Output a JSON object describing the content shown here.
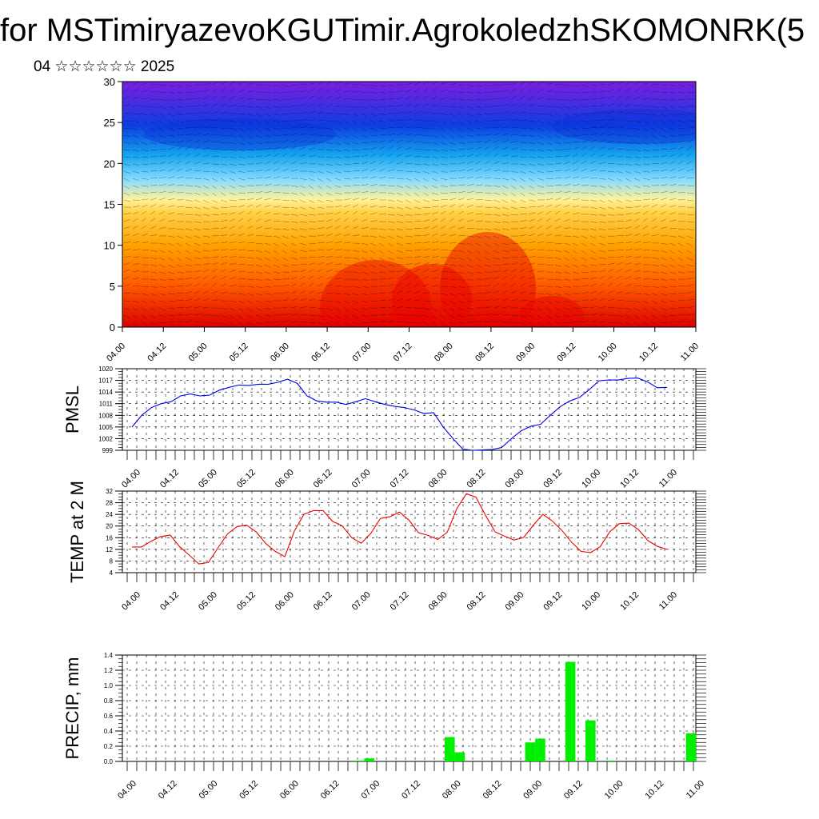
{
  "header": {
    "title": "for MSTimiryazevoKGUTimir.AgrokoledzhSKOMONRK(5",
    "subtitle": "04 ☆☆☆☆☆☆ 2025"
  },
  "time_ticks": [
    "04.00",
    "04.12",
    "05.00",
    "05.12",
    "06.00",
    "06.12",
    "07.00",
    "07.12",
    "08.00",
    "08.12",
    "09.00",
    "09.12",
    "10.00",
    "10.12",
    "11.00"
  ],
  "chart_data": [
    {
      "type": "heatmap",
      "title": "",
      "ylabel": "",
      "ylim": [
        0,
        30
      ],
      "yticks": [
        0,
        5,
        10,
        15,
        20,
        25,
        30
      ],
      "x_start": "04.00",
      "x_end": "11.00",
      "colors": [
        "#dd0000",
        "#ff5a00",
        "#ffa000",
        "#ffd34a",
        "#fff29a",
        "#87dcff",
        "#14a5ef",
        "#0d3ee2",
        "#7a1ee0"
      ],
      "overlay": "wind vectors",
      "grid": false
    },
    {
      "type": "line",
      "ylabel": "PMSL",
      "ylim": [
        999,
        1020
      ],
      "yticks": [
        999,
        1002,
        1005,
        1008,
        1011,
        1014,
        1017,
        1020
      ],
      "color": "#0000ee",
      "grid": true,
      "series": [
        {
          "values": [
            1005,
            1008,
            1010,
            1011,
            1011.5,
            1013,
            1013.5,
            1013,
            1013.2,
            1014.5,
            1015.2,
            1015.8,
            1015.7,
            1016,
            1016,
            1016.5,
            1017.3,
            1016.2,
            1013,
            1011.7,
            1011.4,
            1011.4,
            1010.8,
            1011.5,
            1012.3,
            1011.5,
            1010.8,
            1010.3,
            1010,
            1009.4,
            1008.5,
            1008.7,
            1005,
            1002,
            999.3,
            999,
            999.1,
            999.2,
            999.7,
            1002,
            1004,
            1005.2,
            1005.7,
            1008,
            1010.2,
            1011.7,
            1012.6,
            1014.6,
            1016.9,
            1017.1,
            1017.1,
            1017.5,
            1017.6,
            1016.6,
            1015.1,
            1015.2
          ]
        }
      ]
    },
    {
      "type": "line",
      "ylabel": "TEMP at 2 M",
      "ylim": [
        4,
        32
      ],
      "yticks": [
        4,
        8,
        12,
        16,
        20,
        24,
        28,
        32
      ],
      "color": "#ee0000",
      "grid": true,
      "series": [
        {
          "values": [
            12.8,
            12.8,
            14.8,
            16.4,
            16.9,
            12.9,
            10,
            7,
            7.5,
            12.5,
            17.3,
            19.8,
            20.3,
            18,
            14,
            11.3,
            9.5,
            18.3,
            24,
            25.3,
            25.3,
            21.6,
            20.1,
            16,
            14.1,
            17.5,
            22.6,
            23.2,
            24.8,
            22,
            17.7,
            16.8,
            15.4,
            17.9,
            26,
            31.1,
            29.9,
            23.7,
            18,
            16.5,
            15.2,
            16.1,
            20.3,
            24,
            21.7,
            18.5,
            14.5,
            11.3,
            10.9,
            12.9,
            18,
            20.8,
            21,
            18.8,
            15,
            13,
            12
          ]
        }
      ]
    },
    {
      "type": "bar",
      "ylabel": "PRECIP, mm",
      "ylim": [
        0,
        1.4
      ],
      "yticks": [
        "0.0",
        "0.2",
        "0.4",
        "0.6",
        "0.8",
        "1.0",
        "1.2",
        "1.4"
      ],
      "color": "#00ee00",
      "grid": true,
      "series": [
        {
          "values": [
            0,
            0,
            0,
            0,
            0,
            0,
            0,
            0,
            0,
            0,
            0,
            0,
            0,
            0,
            0,
            0,
            0,
            0,
            0,
            0,
            0,
            0,
            0,
            0.01,
            0.04,
            0,
            0,
            0,
            0,
            0,
            0,
            0,
            0.32,
            0.12,
            0,
            0,
            0,
            0,
            0,
            0,
            0.25,
            0.3,
            0,
            0,
            1.31,
            0,
            0.54,
            0,
            0.01,
            0,
            0,
            0,
            0,
            0,
            0,
            0,
            0.37
          ]
        }
      ]
    }
  ]
}
